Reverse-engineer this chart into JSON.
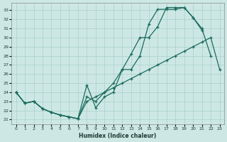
{
  "xlabel": "Humidex (Indice chaleur)",
  "bg_color": "#cde8e4",
  "grid_color": "#aacfca",
  "line_color": "#1a6b5e",
  "xlim": [
    -0.5,
    23.5
  ],
  "ylim": [
    20.5,
    33.8
  ],
  "xticks": [
    0,
    1,
    2,
    3,
    4,
    5,
    6,
    7,
    8,
    9,
    10,
    11,
    12,
    13,
    14,
    15,
    16,
    17,
    18,
    19,
    20,
    21,
    22,
    23
  ],
  "yticks": [
    21,
    22,
    23,
    24,
    25,
    26,
    27,
    28,
    29,
    30,
    31,
    32,
    33
  ],
  "line_jagged": [
    24.0,
    22.8,
    23.0,
    22.2,
    21.8,
    21.5,
    21.3,
    21.1,
    24.8,
    22.3,
    23.5,
    24.0,
    26.5,
    28.2,
    30.0,
    30.0,
    31.2,
    33.3,
    33.3,
    33.3,
    32.2,
    31.0,
    28.0,
    null
  ],
  "line_upper": [
    24.0,
    22.8,
    23.0,
    22.2,
    21.8,
    21.5,
    21.3,
    21.1,
    23.5,
    23.0,
    24.0,
    25.0,
    26.5,
    26.5,
    28.0,
    31.5,
    33.1,
    33.1,
    33.1,
    33.3,
    32.2,
    30.8,
    null,
    null
  ],
  "line_lower": [
    24.0,
    22.8,
    23.0,
    22.2,
    21.8,
    21.5,
    21.3,
    21.1,
    23.0,
    23.5,
    24.0,
    24.5,
    25.0,
    25.5,
    26.0,
    26.5,
    27.0,
    27.5,
    28.0,
    28.5,
    29.0,
    29.5,
    30.0,
    26.5
  ]
}
